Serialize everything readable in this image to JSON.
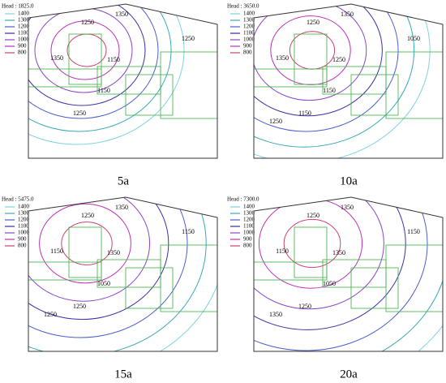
{
  "panels": [
    {
      "head_label": "Head : 1825.0",
      "caption": "5a",
      "contour_labels": [
        "1350",
        "1250",
        "1350",
        "1150",
        "1150",
        "1250",
        "1250"
      ]
    },
    {
      "head_label": "Head : 3650.0",
      "caption": "10a",
      "contour_labels": [
        "1350",
        "1250",
        "1350",
        "1250",
        "1150",
        "1050",
        "1150",
        "1250"
      ]
    },
    {
      "head_label": "Head : 5475.0",
      "caption": "15a",
      "contour_labels": [
        "1350",
        "1250",
        "1150",
        "1350",
        "1050",
        "1150",
        "1250",
        "1250"
      ]
    },
    {
      "head_label": "Head : 7300.0",
      "caption": "20a",
      "contour_labels": [
        "1350",
        "1250",
        "1150",
        "1350",
        "1050",
        "1150",
        "1250",
        "1350"
      ]
    }
  ],
  "legend": [
    {
      "label": "1400",
      "color": "#7fd3dd"
    },
    {
      "label": "1300",
      "color": "#3aa9b8"
    },
    {
      "label": "1200",
      "color": "#4b5fd0"
    },
    {
      "label": "1100",
      "color": "#3a2fa8"
    },
    {
      "label": "1000",
      "color": "#8a45c8"
    },
    {
      "label": "900",
      "color": "#c030b8"
    },
    {
      "label": "800",
      "color": "#d04070"
    }
  ]
}
